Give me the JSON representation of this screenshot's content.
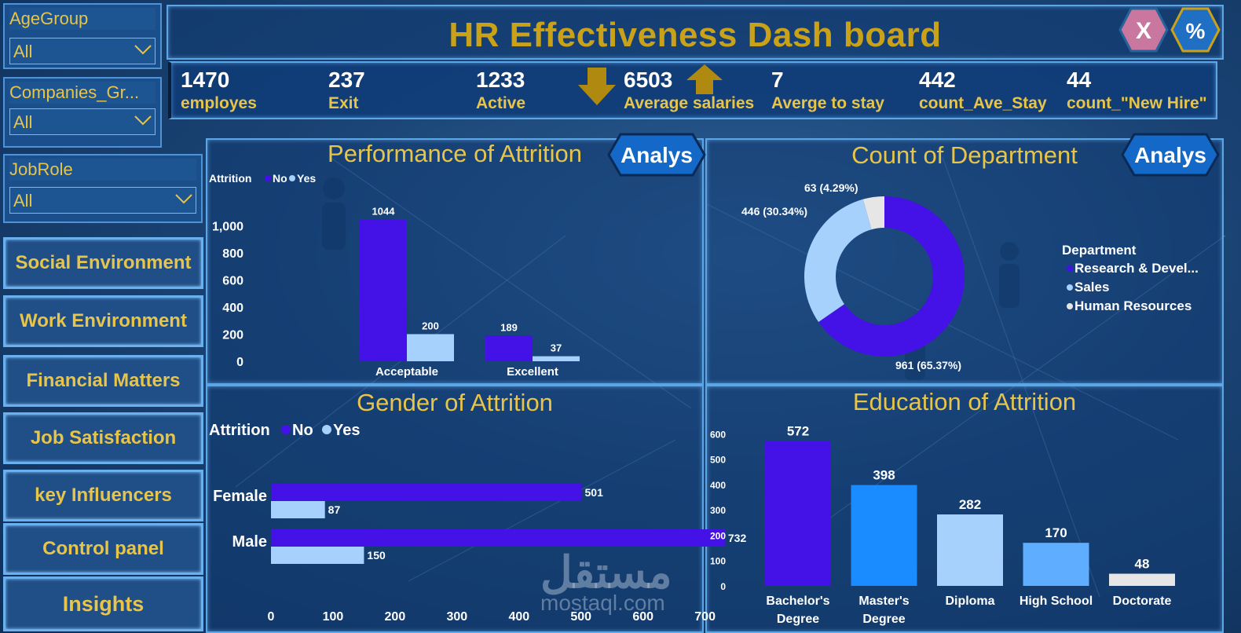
{
  "dashboard": {
    "title": "HR Effectiveness Dash board"
  },
  "buttons": {
    "close_label": "X",
    "percent_label": "%",
    "analys_label_1": "Analys",
    "analys_label_2": "Analys"
  },
  "filters": [
    {
      "label": "AgeGroup",
      "value": "All"
    },
    {
      "label": "Companies_Gr...",
      "value": "All"
    },
    {
      "label": "JobRole",
      "value": "All"
    }
  ],
  "nav": [
    "Social Environment",
    "Work Environment",
    "Financial Matters",
    "Job Satisfaction",
    "key Influencers",
    "Control panel",
    "Insights"
  ],
  "kpis": [
    {
      "value": "1470",
      "label": "employes"
    },
    {
      "value": "237",
      "label": "Exit"
    },
    {
      "value": "1233",
      "label": "Active"
    },
    {
      "value": "6503",
      "label": "Average salaries"
    },
    {
      "value": "7",
      "label": "Averge to stay"
    },
    {
      "value": "442",
      "label": "count_Ave_Stay"
    },
    {
      "value": "44",
      "label": "count_\"New Hire\""
    }
  ],
  "colors": {
    "no": "#4411e6",
    "yes": "#a6d1fc",
    "gold": "#e7c44a",
    "title": "#c9a21a",
    "grey": "#e6e6e6",
    "mid": "#1a8cff",
    "light": "#5eadff"
  },
  "watermark": {
    "arabic": "مستقل",
    "domain": "mostaql.com"
  },
  "chart_data": [
    {
      "type": "bar",
      "title": "Performance of Attrition",
      "legend_title": "Attrition",
      "categories": [
        "Acceptable",
        "Excellent"
      ],
      "series": [
        {
          "name": "No",
          "values": [
            1044,
            189
          ]
        },
        {
          "name": "Yes",
          "values": [
            200,
            37
          ]
        }
      ],
      "ylim": [
        0,
        1100
      ],
      "yticks": [
        0,
        200,
        400,
        600,
        800,
        1000
      ],
      "ytick_labels": [
        "0",
        "200",
        "400",
        "600",
        "800",
        "1,000"
      ]
    },
    {
      "type": "pie",
      "title": "Count of Department",
      "legend_title": "Department",
      "categories": [
        "Research & Devel...",
        "Sales",
        "Human Resources"
      ],
      "values": [
        961,
        446,
        63
      ],
      "labels": [
        "961 (65.37%)",
        "446 (30.34%)",
        "63 (4.29%)"
      ]
    },
    {
      "type": "bar",
      "orientation": "horizontal",
      "title": "Gender of Attrition",
      "legend_title": "Attrition",
      "categories": [
        "Female",
        "Male"
      ],
      "series": [
        {
          "name": "No",
          "values": [
            501,
            732
          ]
        },
        {
          "name": "Yes",
          "values": [
            87,
            150
          ]
        }
      ],
      "xlim": [
        0,
        760
      ],
      "xticks": [
        0,
        100,
        200,
        300,
        400,
        500,
        600,
        700
      ]
    },
    {
      "type": "bar",
      "title": "Education of Attrition",
      "categories": [
        "Bachelor's Degree",
        "Master's Degree",
        "Diploma",
        "High School",
        "Doctorate"
      ],
      "category_lines": [
        [
          "Bachelor's",
          "Degree"
        ],
        [
          "Master's",
          "Degree"
        ],
        [
          "Diploma"
        ],
        [
          "High School"
        ],
        [
          "Doctorate"
        ]
      ],
      "values": [
        572,
        398,
        282,
        170,
        48
      ],
      "ylim": [
        0,
        620
      ],
      "yticks": [
        0,
        100,
        200,
        300,
        400,
        500,
        600
      ]
    }
  ]
}
